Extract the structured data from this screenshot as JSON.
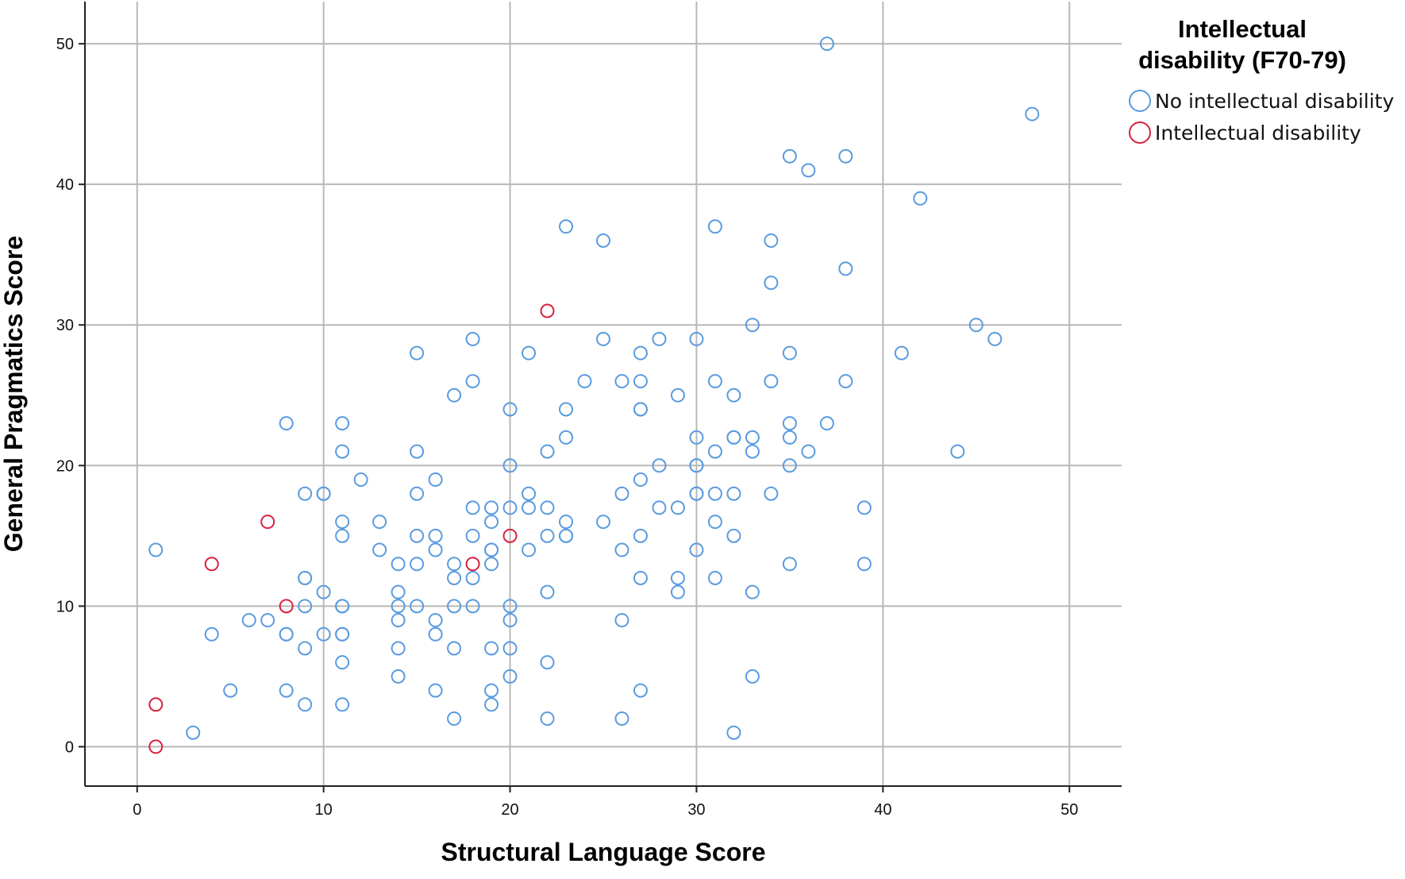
{
  "chart_data": {
    "type": "scatter",
    "title": "",
    "xlabel": "Structural Language Score",
    "ylabel": "General Pragmatics Score",
    "xlim": [
      -2.8,
      52.8
    ],
    "ylim": [
      -2.8,
      53
    ],
    "xticks": [
      0,
      10,
      20,
      30,
      40,
      50
    ],
    "yticks": [
      0,
      10,
      20,
      30,
      40,
      50
    ],
    "grid": true,
    "legend": {
      "title_lines": [
        "Intellectual",
        "disability (F70-79)"
      ],
      "placement": "right"
    },
    "series": [
      {
        "name": "No intellectual disability",
        "color": "#5a9bdf",
        "marker": "open-circle",
        "points": [
          [
            37,
            50
          ],
          [
            48,
            45
          ],
          [
            35,
            42
          ],
          [
            38,
            42
          ],
          [
            36,
            41
          ],
          [
            42,
            39
          ],
          [
            23,
            37
          ],
          [
            31,
            37
          ],
          [
            25,
            36
          ],
          [
            34,
            36
          ],
          [
            38,
            34
          ],
          [
            34,
            33
          ],
          [
            33,
            30
          ],
          [
            45,
            30
          ],
          [
            46,
            29
          ],
          [
            18,
            29
          ],
          [
            25,
            29
          ],
          [
            28,
            29
          ],
          [
            30,
            29
          ],
          [
            15,
            28
          ],
          [
            21,
            28
          ],
          [
            27,
            28
          ],
          [
            35,
            28
          ],
          [
            41,
            28
          ],
          [
            18,
            26
          ],
          [
            24,
            26
          ],
          [
            26,
            26
          ],
          [
            27,
            26
          ],
          [
            31,
            26
          ],
          [
            34,
            26
          ],
          [
            38,
            26
          ],
          [
            17,
            25
          ],
          [
            29,
            25
          ],
          [
            32,
            25
          ],
          [
            20,
            24
          ],
          [
            23,
            24
          ],
          [
            27,
            24
          ],
          [
            27,
            24
          ],
          [
            8,
            23
          ],
          [
            11,
            23
          ],
          [
            35,
            23
          ],
          [
            37,
            23
          ],
          [
            23,
            22
          ],
          [
            30,
            22
          ],
          [
            32,
            22
          ],
          [
            32,
            22
          ],
          [
            33,
            22
          ],
          [
            35,
            22
          ],
          [
            11,
            21
          ],
          [
            15,
            21
          ],
          [
            22,
            21
          ],
          [
            31,
            21
          ],
          [
            33,
            21
          ],
          [
            36,
            21
          ],
          [
            44,
            21
          ],
          [
            20,
            20
          ],
          [
            28,
            20
          ],
          [
            30,
            20
          ],
          [
            30,
            20
          ],
          [
            35,
            20
          ],
          [
            12,
            19
          ],
          [
            16,
            19
          ],
          [
            27,
            19
          ],
          [
            9,
            18
          ],
          [
            10,
            18
          ],
          [
            10,
            18
          ],
          [
            15,
            18
          ],
          [
            21,
            18
          ],
          [
            26,
            18
          ],
          [
            30,
            18
          ],
          [
            30,
            18
          ],
          [
            31,
            18
          ],
          [
            32,
            18
          ],
          [
            34,
            18
          ],
          [
            18,
            17
          ],
          [
            19,
            17
          ],
          [
            20,
            17
          ],
          [
            21,
            17
          ],
          [
            22,
            17
          ],
          [
            28,
            17
          ],
          [
            29,
            17
          ],
          [
            39,
            17
          ],
          [
            11,
            16
          ],
          [
            13,
            16
          ],
          [
            19,
            16
          ],
          [
            23,
            16
          ],
          [
            25,
            16
          ],
          [
            31,
            16
          ],
          [
            11,
            15
          ],
          [
            15,
            15
          ],
          [
            16,
            15
          ],
          [
            18,
            15
          ],
          [
            22,
            15
          ],
          [
            23,
            15
          ],
          [
            23,
            15
          ],
          [
            27,
            15
          ],
          [
            32,
            15
          ],
          [
            1,
            14
          ],
          [
            13,
            14
          ],
          [
            16,
            14
          ],
          [
            19,
            14
          ],
          [
            19,
            14
          ],
          [
            21,
            14
          ],
          [
            26,
            14
          ],
          [
            30,
            14
          ],
          [
            14,
            13
          ],
          [
            15,
            13
          ],
          [
            17,
            13
          ],
          [
            19,
            13
          ],
          [
            35,
            13
          ],
          [
            39,
            13
          ],
          [
            9,
            12
          ],
          [
            9,
            12
          ],
          [
            17,
            12
          ],
          [
            18,
            12
          ],
          [
            27,
            12
          ],
          [
            29,
            12
          ],
          [
            31,
            12
          ],
          [
            10,
            11
          ],
          [
            14,
            11
          ],
          [
            22,
            11
          ],
          [
            29,
            11
          ],
          [
            33,
            11
          ],
          [
            9,
            10
          ],
          [
            11,
            10
          ],
          [
            11,
            10
          ],
          [
            14,
            10
          ],
          [
            15,
            10
          ],
          [
            17,
            10
          ],
          [
            18,
            10
          ],
          [
            20,
            10
          ],
          [
            6,
            9
          ],
          [
            7,
            9
          ],
          [
            14,
            9
          ],
          [
            16,
            9
          ],
          [
            20,
            9
          ],
          [
            26,
            9
          ],
          [
            4,
            8
          ],
          [
            8,
            8
          ],
          [
            8,
            8
          ],
          [
            10,
            8
          ],
          [
            11,
            8
          ],
          [
            11,
            8
          ],
          [
            16,
            8
          ],
          [
            9,
            7
          ],
          [
            14,
            7
          ],
          [
            17,
            7
          ],
          [
            19,
            7
          ],
          [
            20,
            7
          ],
          [
            11,
            6
          ],
          [
            22,
            6
          ],
          [
            14,
            5
          ],
          [
            20,
            5
          ],
          [
            33,
            5
          ],
          [
            5,
            4
          ],
          [
            8,
            4
          ],
          [
            16,
            4
          ],
          [
            19,
            4
          ],
          [
            27,
            4
          ],
          [
            9,
            3
          ],
          [
            11,
            3
          ],
          [
            19,
            3
          ],
          [
            17,
            2
          ],
          [
            22,
            2
          ],
          [
            26,
            2
          ],
          [
            3,
            1
          ],
          [
            32,
            1
          ]
        ]
      },
      {
        "name": "Intellectual disability",
        "color": "#d8213f",
        "marker": "open-circle",
        "points": [
          [
            22,
            31
          ],
          [
            7,
            16
          ],
          [
            20,
            15
          ],
          [
            4,
            13
          ],
          [
            18,
            13
          ],
          [
            8,
            10
          ],
          [
            1,
            3
          ],
          [
            1,
            0
          ]
        ]
      }
    ]
  }
}
